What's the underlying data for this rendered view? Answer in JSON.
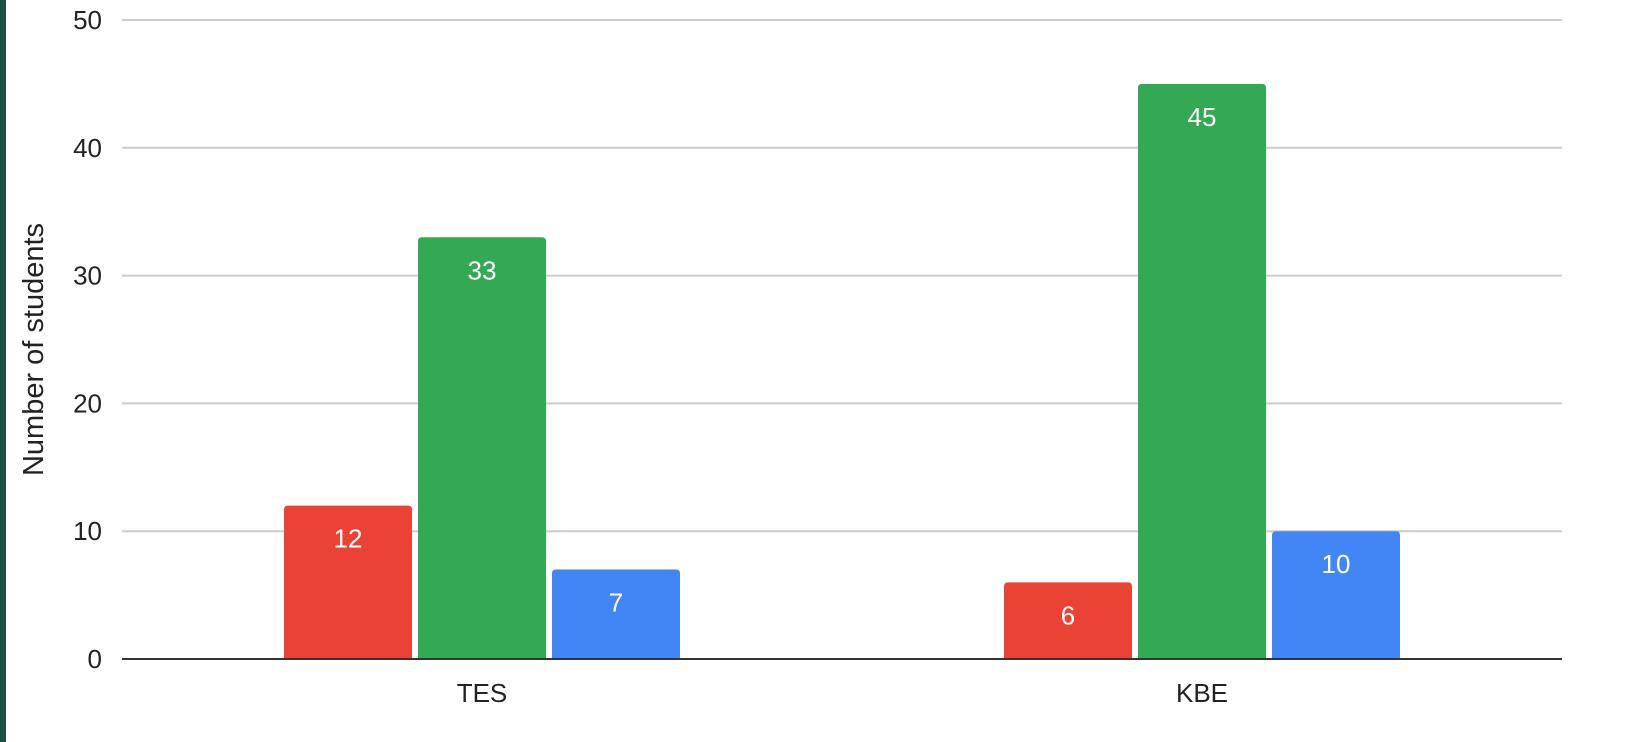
{
  "chart_data": {
    "type": "bar",
    "title": "",
    "xlabel": "",
    "ylabel": "Number of students",
    "ylim": [
      0,
      50
    ],
    "yticks": [
      0,
      10,
      20,
      30,
      40,
      50
    ],
    "grid": true,
    "legend": "none",
    "categories": [
      "TES",
      "KBE"
    ],
    "series": [
      {
        "color": "#ea4335",
        "values": [
          12,
          6
        ]
      },
      {
        "color": "#34a853",
        "values": [
          33,
          45
        ]
      },
      {
        "color": "#4285f4",
        "values": [
          7,
          10
        ]
      }
    ],
    "data_labels": true,
    "gridline_color": "#cccccc",
    "baseline_color": "#333333"
  }
}
